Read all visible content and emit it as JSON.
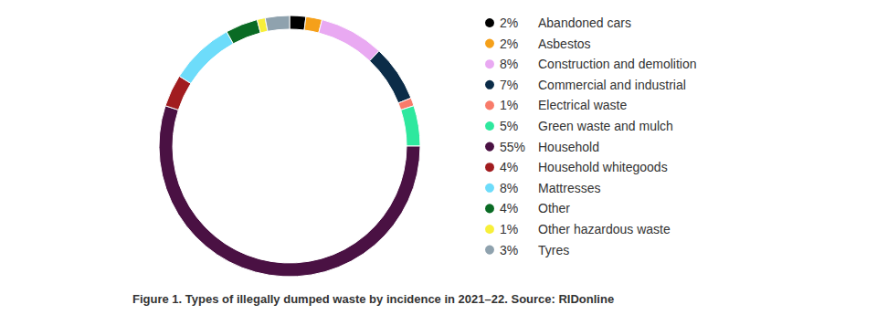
{
  "chart_data": {
    "type": "pie",
    "title": "Figure 1. Types of illegally dumped waste by incidence in 2021–22. Source: RIDonline",
    "categories": [
      "Abandoned cars",
      "Asbestos",
      "Construction and demolition",
      "Commercial and industrial",
      "Electrical waste",
      "Green waste and mulch",
      "Household",
      "Household whitegoods",
      "Mattresses",
      "Other",
      "Other hazardous waste",
      "Tyres"
    ],
    "values": [
      2,
      2,
      8,
      7,
      1,
      5,
      55,
      4,
      8,
      4,
      1,
      3
    ],
    "value_labels": [
      "2%",
      "2%",
      "8%",
      "7%",
      "1%",
      "5%",
      "55%",
      "4%",
      "8%",
      "4%",
      "1%",
      "3%"
    ],
    "colors": [
      "#000000",
      "#f5a01a",
      "#e9a9f2",
      "#0b2c48",
      "#f87b6a",
      "#2ee89e",
      "#4a1143",
      "#a11c1f",
      "#6ddcfa",
      "#0a6b24",
      "#f7ef3a",
      "#8fa2ae"
    ],
    "legend": "right"
  }
}
